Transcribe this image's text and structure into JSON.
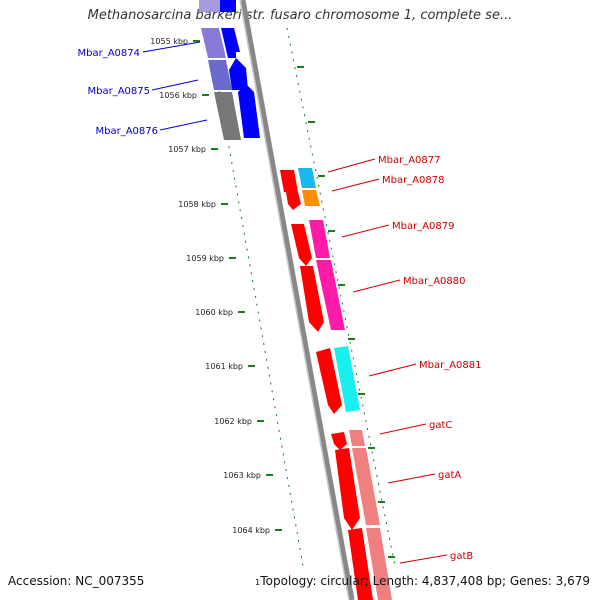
{
  "title": "Methanosarcina barkeri str. fusaro chromosome 1, complete se...",
  "footer": {
    "accession": "Accession: NC_007355",
    "marker": "1",
    "topology": "Topology: circular; Length: 4,837,408 bp; Genes: 3,679"
  },
  "colors": {
    "tick": "#1a7f1a",
    "left_labels": "#0000cc",
    "right_labels": "#cc0000",
    "backbone": "#888888"
  },
  "ticks": [
    "1055 kbp",
    "1056 kbp",
    "1057 kbp",
    "1058 kbp",
    "1059 kbp",
    "1060 kbp",
    "1061 kbp",
    "1062 kbp",
    "1063 kbp",
    "1064 kbp"
  ],
  "genes": [
    {
      "name": "Mbar_A0874",
      "side": "left",
      "color": "#0000ff",
      "cog": "#8a7ad8"
    },
    {
      "name": "Mbar_A0875",
      "side": "left",
      "color": "#0000ff",
      "cog": "#6a6acf"
    },
    {
      "name": "Mbar_A0876",
      "side": "left",
      "color": "#0000ff",
      "cog": "#777777"
    },
    {
      "name": "Mbar_A0877",
      "side": "right",
      "color": "#ff0000",
      "cog": "#18b8f0"
    },
    {
      "name": "Mbar_A0878",
      "side": "right",
      "color": "#ff0000",
      "cog": "#ff8c00"
    },
    {
      "name": "Mbar_A0879",
      "side": "right",
      "color": "#ff0000",
      "cog": "#ff1aa8"
    },
    {
      "name": "Mbar_A0880",
      "side": "right",
      "color": "#ff0000",
      "cog": "#ff1aa8"
    },
    {
      "name": "Mbar_A0881",
      "side": "right",
      "color": "#ff0000",
      "cog": "#18f0f0"
    },
    {
      "name": "gatC",
      "side": "right",
      "color": "#ff0000",
      "cog": "#f08080"
    },
    {
      "name": "gatA",
      "side": "right",
      "color": "#ff0000",
      "cog": "#f08080"
    },
    {
      "name": "gatB",
      "side": "right",
      "color": "#ff0000",
      "cog": "#f08080"
    }
  ]
}
